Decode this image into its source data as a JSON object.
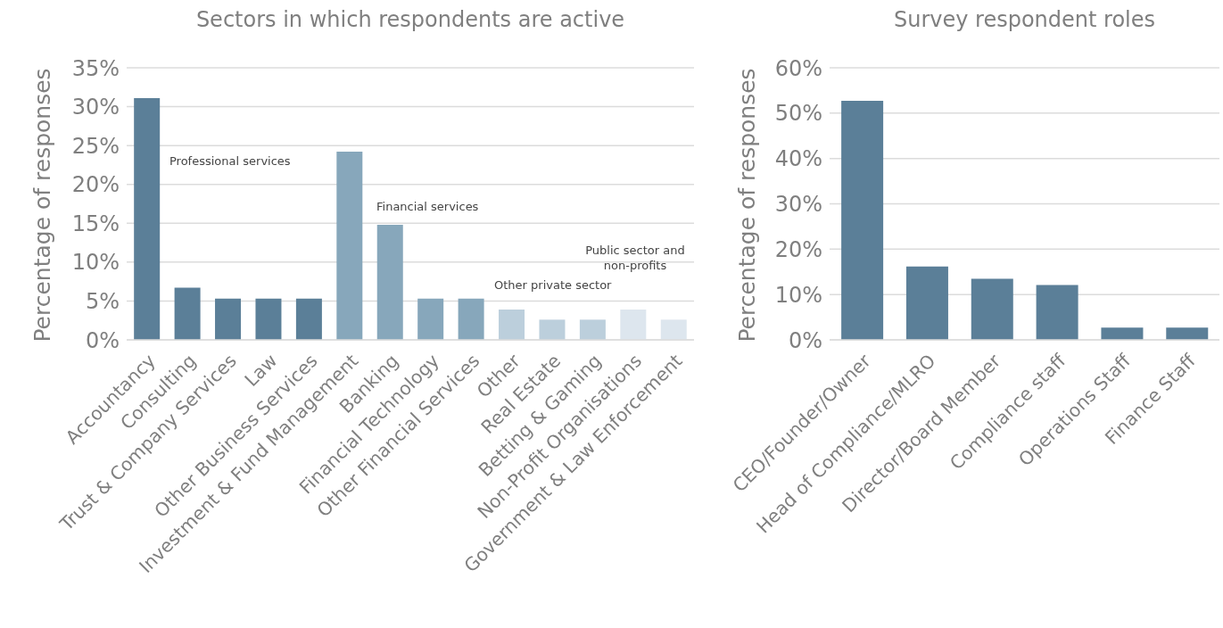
{
  "chart_data": [
    {
      "type": "bar",
      "title": "Sectors in which respondents are active",
      "ylabel": "Percentage of responses",
      "categories": [
        "Accountancy",
        "Consulting",
        "Trust & Company Services",
        "Law",
        "Other Business Services",
        "Investment & Fund Management",
        "Banking",
        "Financial Technology",
        "Other Financial Services",
        "Other",
        "Real Estate",
        "Betting & Gaming",
        "Non-Profit Organisations",
        "Government & Law Enforcement"
      ],
      "values": [
        31.1,
        6.7,
        5.3,
        5.3,
        5.3,
        24.2,
        14.8,
        5.3,
        5.3,
        3.9,
        2.6,
        2.6,
        3.9,
        2.6
      ],
      "colors": [
        "#5b7f98",
        "#5b7f98",
        "#5b7f98",
        "#5b7f98",
        "#5b7f98",
        "#87a7bb",
        "#87a7bb",
        "#87a7bb",
        "#87a7bb",
        "#bccfdc",
        "#bccfdc",
        "#bccfdc",
        "#dde6ee",
        "#dde6ee"
      ],
      "ylim": [
        0,
        35
      ],
      "yticks": [
        {
          "value": 0,
          "label": "0%"
        },
        {
          "value": 5,
          "label": "5%"
        },
        {
          "value": 10,
          "label": "10%"
        },
        {
          "value": 15,
          "label": "15%"
        },
        {
          "value": 20,
          "label": "20%"
        },
        {
          "value": 25,
          "label": "25%"
        },
        {
          "value": 30,
          "label": "30%"
        },
        {
          "value": 35,
          "label": "35%"
        }
      ],
      "grid": "y",
      "annotations": [
        "Professional services",
        "Financial services",
        "Other private sector",
        "Public sector and non-profits"
      ]
    },
    {
      "type": "bar",
      "title": "Survey respondent roles",
      "ylabel": "Percentage of responses",
      "categories": [
        "CEO/Founder/Owner",
        "Head of Compliance/MLRO",
        "Director/Board Member",
        "Compliance staff",
        "Operations Staff",
        "Finance Staff"
      ],
      "values": [
        52.7,
        16.2,
        13.5,
        12.1,
        2.7,
        2.7
      ],
      "color": "#5b7f98",
      "ylim": [
        0,
        60
      ],
      "yticks": [
        {
          "value": 0,
          "label": "0%"
        },
        {
          "value": 10,
          "label": "10%"
        },
        {
          "value": 20,
          "label": "20%"
        },
        {
          "value": 30,
          "label": "30%"
        },
        {
          "value": 40,
          "label": "40%"
        },
        {
          "value": 50,
          "label": "50%"
        },
        {
          "value": 60,
          "label": "60%"
        }
      ],
      "grid": "y"
    }
  ]
}
